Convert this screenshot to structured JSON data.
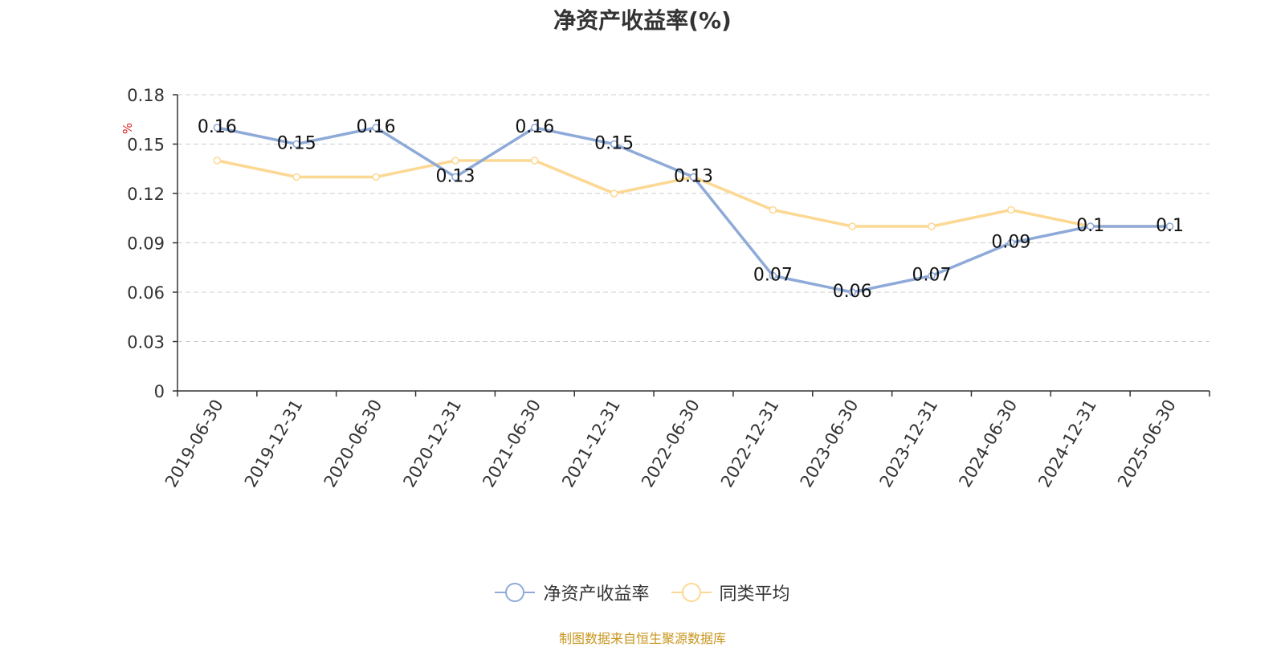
{
  "title": "净资产收益率(%)",
  "source_text": "制图数据来自恒生聚源数据库",
  "colors": {
    "series1": "#8eaad8",
    "series2": "#fcd893",
    "grid": "#cccccc",
    "axis": "#333333",
    "unit": "#e02020",
    "source": "#c8961e"
  },
  "chart_data": {
    "type": "line",
    "title": "净资产收益率(%)",
    "ylabel": "%",
    "ylim": [
      0,
      0.18
    ],
    "yticks": [
      "0",
      "0.03",
      "0.06",
      "0.09",
      "0.12",
      "0.15",
      "0.18"
    ],
    "grid": true,
    "legend_position": "bottom",
    "x": [
      "2019-06-30",
      "2019-12-31",
      "2020-06-30",
      "2020-12-31",
      "2021-06-30",
      "2021-12-31",
      "2022-06-30",
      "2022-12-31",
      "2023-06-30",
      "2023-12-31",
      "2024-06-30",
      "2024-12-31",
      "2025-06-30"
    ],
    "series": [
      {
        "name": "净资产收益率",
        "values": [
          0.16,
          0.15,
          0.16,
          0.13,
          0.16,
          0.15,
          0.13,
          0.07,
          0.06,
          0.07,
          0.09,
          0.1,
          0.1
        ],
        "labels": [
          "0.16",
          "0.15",
          "0.16",
          "0.13",
          "0.16",
          "0.15",
          "0.13",
          "0.07",
          "0.06",
          "0.07",
          "0.09",
          "0.1",
          "0.1"
        ]
      },
      {
        "name": "同类平均",
        "values": [
          0.14,
          0.13,
          0.13,
          0.14,
          0.14,
          0.12,
          0.13,
          0.11,
          0.1,
          0.1,
          0.11,
          0.1,
          0.1
        ]
      }
    ]
  }
}
